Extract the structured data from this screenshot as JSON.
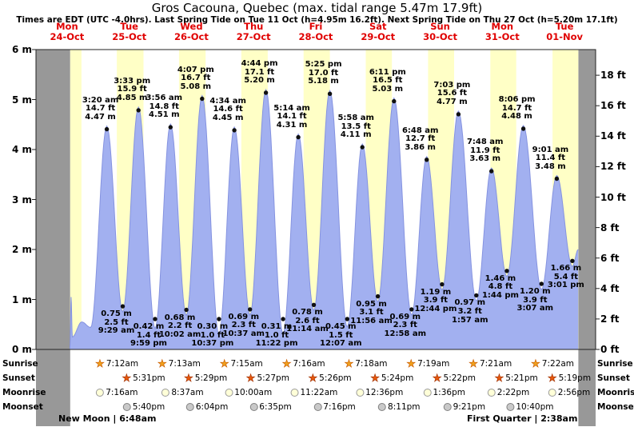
{
  "title": "Gros Cacouna, Quebec (max. tidal range 5.47m 17.9ft)",
  "subtitle": "Times are EDT (UTC -4.0hrs). Last Spring Tide on Tue 11 Oct (h=4.95m 16.2ft). Next Spring Tide on Thu 27 Oct (h=5.20m 17.1ft)",
  "chart_data": {
    "type": "area",
    "title": "Gros Cacouna, Quebec (max. tidal range 5.47m 17.9ft)",
    "x_range_days": 9,
    "days": [
      {
        "name": "Mon",
        "date": "24-Oct"
      },
      {
        "name": "Tue",
        "date": "25-Oct"
      },
      {
        "name": "Wed",
        "date": "26-Oct"
      },
      {
        "name": "Thu",
        "date": "27-Oct"
      },
      {
        "name": "Fri",
        "date": "28-Oct"
      },
      {
        "name": "Sat",
        "date": "29-Oct"
      },
      {
        "name": "Sun",
        "date": "30-Oct"
      },
      {
        "name": "Mon",
        "date": "31-Oct"
      },
      {
        "name": "Tue",
        "date": "01-Nov"
      }
    ],
    "y_axis_left": {
      "unit": "m",
      "min": 0,
      "max": 6,
      "tick_step": 1,
      "tick_labels": [
        "6 m",
        "5 m",
        "4 m",
        "3 m",
        "2 m",
        "1 m",
        "0 m"
      ]
    },
    "y_axis_right": {
      "unit": "ft",
      "min": 0,
      "max": 18,
      "tick_step": 2,
      "tick_labels": [
        "18 ft",
        "16 ft",
        "14 ft",
        "12 ft",
        "10 ft",
        "8 ft",
        "6 ft",
        "4 ft",
        "2 ft",
        "0 ft"
      ]
    },
    "tide_events": [
      {
        "day": 1,
        "time": "3:20 am",
        "type": "high",
        "m": 4.47,
        "ft": 14.7
      },
      {
        "day": 1,
        "time": "9:29 am",
        "type": "low",
        "m": 0.75,
        "ft": 2.5
      },
      {
        "day": 1,
        "time": "3:33 pm",
        "type": "high",
        "m": 4.85,
        "ft": 15.9
      },
      {
        "day": 1,
        "time": "9:59 pm",
        "type": "low",
        "m": 0.42,
        "ft": 1.4
      },
      {
        "day": 2,
        "time": "3:56 am",
        "type": "high",
        "m": 4.51,
        "ft": 14.8
      },
      {
        "day": 2,
        "time": "10:02 am",
        "type": "low",
        "m": 0.68,
        "ft": 2.2
      },
      {
        "day": 2,
        "time": "4:07 pm",
        "type": "high",
        "m": 5.08,
        "ft": 16.7
      },
      {
        "day": 2,
        "time": "10:37 pm",
        "type": "low",
        "m": 0.3,
        "ft": 1.0
      },
      {
        "day": 3,
        "time": "4:34 am",
        "type": "high",
        "m": 4.45,
        "ft": 14.6
      },
      {
        "day": 3,
        "time": "10:37 am",
        "type": "low",
        "m": 0.69,
        "ft": 2.3
      },
      {
        "day": 3,
        "time": "4:44 pm",
        "type": "high",
        "m": 5.2,
        "ft": 17.1
      },
      {
        "day": 3,
        "time": "11:22 pm",
        "type": "low",
        "m": 0.31,
        "ft": 1.0
      },
      {
        "day": 4,
        "time": "5:14 am",
        "type": "high",
        "m": 4.31,
        "ft": 14.1
      },
      {
        "day": 4,
        "time": "11:14 am",
        "type": "low",
        "m": 0.78,
        "ft": 2.6
      },
      {
        "day": 4,
        "time": "5:25 pm",
        "type": "high",
        "m": 5.18,
        "ft": 17.0
      },
      {
        "day": 5,
        "time": "12:07 am",
        "type": "low",
        "m": 0.45,
        "ft": 1.5
      },
      {
        "day": 5,
        "time": "5:58 am",
        "type": "high",
        "m": 4.11,
        "ft": 13.5
      },
      {
        "day": 5,
        "time": "11:56 am",
        "type": "low",
        "m": 0.95,
        "ft": 3.1
      },
      {
        "day": 5,
        "time": "6:11 pm",
        "type": "high",
        "m": 5.03,
        "ft": 16.5
      },
      {
        "day": 6,
        "time": "12:58 am",
        "type": "low",
        "m": 0.69,
        "ft": 2.3
      },
      {
        "day": 6,
        "time": "6:48 am",
        "type": "high",
        "m": 3.86,
        "ft": 12.7
      },
      {
        "day": 6,
        "time": "12:44 pm",
        "type": "low",
        "m": 1.19,
        "ft": 3.9
      },
      {
        "day": 6,
        "time": "7:03 pm",
        "type": "high",
        "m": 4.77,
        "ft": 15.6
      },
      {
        "day": 7,
        "time": "1:57 am",
        "type": "low",
        "m": 0.97,
        "ft": 3.2
      },
      {
        "day": 7,
        "time": "7:48 am",
        "type": "high",
        "m": 3.63,
        "ft": 11.9
      },
      {
        "day": 7,
        "time": "1:44 pm",
        "type": "low",
        "m": 1.46,
        "ft": 4.8
      },
      {
        "day": 7,
        "time": "8:06 pm",
        "type": "high",
        "m": 4.48,
        "ft": 14.7
      },
      {
        "day": 8,
        "time": "3:07 am",
        "type": "low",
        "m": 1.2,
        "ft": 3.9
      },
      {
        "day": 8,
        "time": "9:01 am",
        "type": "high",
        "m": 3.48,
        "ft": 11.4
      },
      {
        "day": 8,
        "time": "3:01 pm",
        "type": "low",
        "m": 1.66,
        "ft": 5.4
      }
    ],
    "curve_lead_points": [
      [
        0.545,
        0.02
      ],
      [
        0.565,
        1.05
      ],
      [
        0.585,
        0.25
      ],
      [
        0.735,
        0.55
      ],
      [
        0.88,
        0.44
      ]
    ],
    "curve_tail_points": [
      [
        8.72,
        2.0
      ]
    ],
    "bands": {
      "past_gray": [
        [
          0,
          0.55
        ],
        [
          8.7217,
          9
        ]
      ],
      "first_day_daylight": [
        0.55,
        0.731
      ]
    },
    "colors": {
      "curve_fill": "#a2b0f0",
      "curve_edge": "#8593e0",
      "daylight_band": "#ffffc6",
      "past_band": "#989898",
      "day_label": "#e00000"
    }
  },
  "astro": {
    "row_labels": [
      "Sunrise",
      "Sunset",
      "Moonrise",
      "Moonset"
    ],
    "sunrise": [
      {
        "day": 1,
        "time": "7:12am"
      },
      {
        "day": 2,
        "time": "7:13am"
      },
      {
        "day": 3,
        "time": "7:15am"
      },
      {
        "day": 4,
        "time": "7:16am"
      },
      {
        "day": 5,
        "time": "7:18am"
      },
      {
        "day": 6,
        "time": "7:19am"
      },
      {
        "day": 7,
        "time": "7:21am"
      },
      {
        "day": 8,
        "time": "7:22am"
      }
    ],
    "sunset": [
      {
        "day": 1,
        "time": "5:31pm"
      },
      {
        "day": 2,
        "time": "5:29pm"
      },
      {
        "day": 3,
        "time": "5:27pm"
      },
      {
        "day": 4,
        "time": "5:26pm"
      },
      {
        "day": 5,
        "time": "5:24pm"
      },
      {
        "day": 6,
        "time": "5:22pm"
      },
      {
        "day": 7,
        "time": "5:21pm"
      },
      {
        "day": 8,
        "time": "5:19pm"
      }
    ],
    "moonrise": [
      {
        "day": 1,
        "time": "7:16am"
      },
      {
        "day": 2,
        "time": "8:37am"
      },
      {
        "day": 3,
        "time": "10:00am"
      },
      {
        "day": 4,
        "time": "11:22am"
      },
      {
        "day": 5,
        "time": "12:36pm"
      },
      {
        "day": 6,
        "time": "1:36pm"
      },
      {
        "day": 7,
        "time": "2:22pm"
      },
      {
        "day": 8,
        "time": "2:56pm"
      }
    ],
    "moonset": [
      {
        "day": 1,
        "time": "5:40pm"
      },
      {
        "day": 2,
        "time": "6:04pm"
      },
      {
        "day": 3,
        "time": "6:35pm"
      },
      {
        "day": 4,
        "time": "7:16pm"
      },
      {
        "day": 5,
        "time": "8:11pm"
      },
      {
        "day": 6,
        "time": "9:21pm"
      },
      {
        "day": 7,
        "time": "10:40pm"
      }
    ],
    "moon_phases": [
      "New Moon | 6:48am",
      "First Quarter | 2:38am"
    ]
  }
}
